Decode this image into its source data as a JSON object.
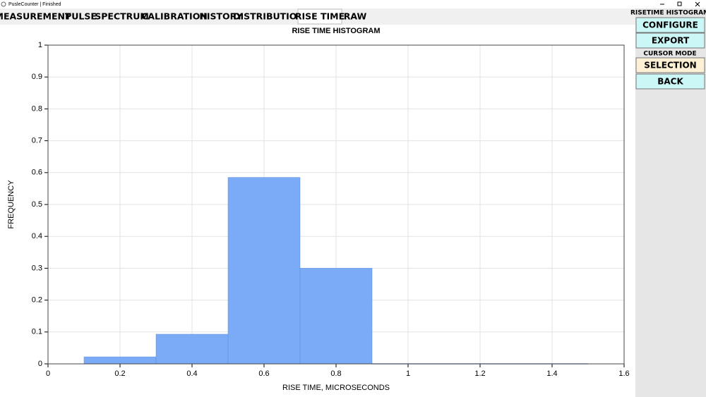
{
  "window": {
    "title": "PusleCounter | Finished"
  },
  "tabs": {
    "items": [
      "MEASUREMENT",
      "PULSE",
      "SPECTRUM",
      "CALIBRATION",
      "HISTORY",
      "DISTRIBUTION",
      "RISE TIME",
      "RAW"
    ],
    "selected": 6
  },
  "side_panel": {
    "heading": "RISETIME HISTOGRAM",
    "buttons": [
      "CONFIGURE",
      "EXPORT"
    ],
    "mode_label": "CURSOR MODE",
    "mode_buttons": [
      "SELECTION",
      "BACK"
    ],
    "active_mode": 0
  },
  "chart_data": {
    "type": "histogram",
    "title": "RISE TIME HISTOGRAM",
    "x_label": "RISE TIME, MICROSECONDS",
    "y_label": "FREQUENCY",
    "bins": [
      0.1,
      0.3,
      0.5,
      0.7,
      0.9,
      1.1,
      1.3,
      1.5
    ],
    "values": [
      0.022,
      0.093,
      0.585,
      0.3,
      0.001,
      0.001,
      0.001
    ],
    "color": "#7baaf7",
    "xlim": [
      0,
      1.6
    ],
    "ylim": [
      0,
      1
    ],
    "xticks": [
      0,
      0.2,
      0.4,
      0.6,
      0.8,
      1,
      1.2,
      1.4,
      1.6
    ],
    "yticks": [
      0,
      0.1,
      0.2,
      0.3,
      0.4,
      0.5,
      0.6,
      0.7,
      0.8,
      0.9,
      1
    ],
    "grid": true
  }
}
